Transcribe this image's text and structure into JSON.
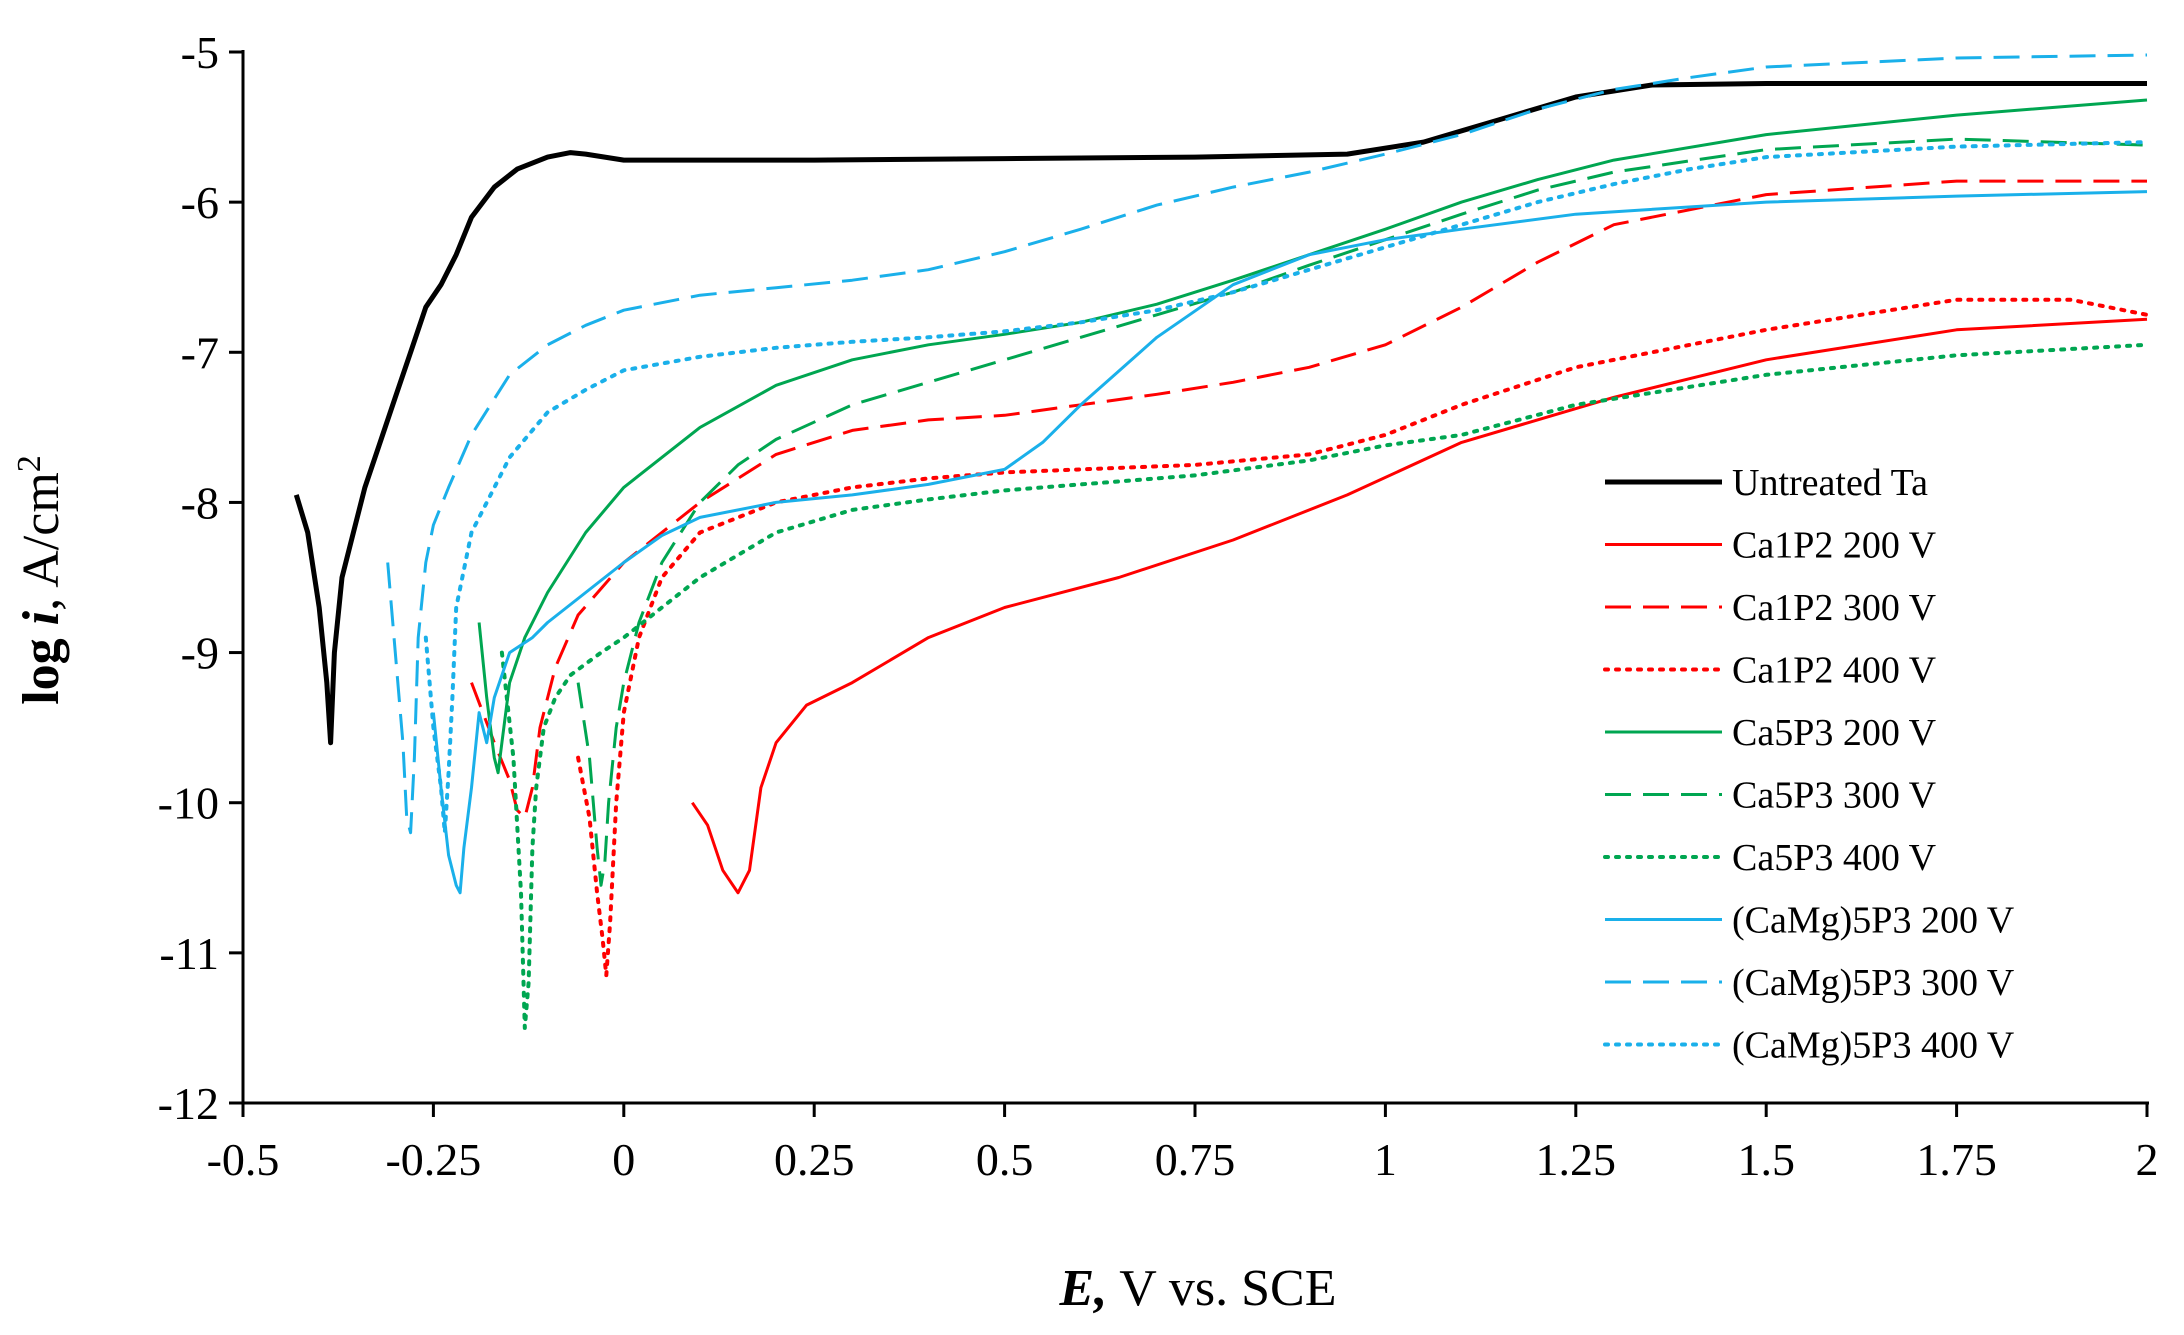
{
  "chart_data": {
    "type": "line",
    "title": "",
    "xlabel": {
      "italic": "E,",
      "rest": " V vs. SCE"
    },
    "ylabel": {
      "bold": "log ",
      "bold_italic": "i",
      "rest": ", A/cm",
      "sup": "2"
    },
    "xlim": [
      -0.5,
      2.0
    ],
    "ylim": [
      -12,
      -5
    ],
    "xticks": [
      -0.5,
      -0.25,
      0,
      0.25,
      0.5,
      0.75,
      1,
      1.25,
      1.5,
      1.75,
      2
    ],
    "xtick_labels": [
      "-0.5",
      "-0.25",
      "0",
      "0.25",
      "0.5",
      "0.75",
      "1",
      "1.25",
      "1.5",
      "1.75",
      "2"
    ],
    "yticks": [
      -5,
      -6,
      -7,
      -8,
      -9,
      -10,
      -11,
      -12
    ],
    "ytick_labels": [
      "-5",
      "-6",
      "-7",
      "-8",
      "-9",
      "-10",
      "-11",
      "-12"
    ],
    "grid": false,
    "legend_position": "right",
    "series": [
      {
        "name": "Untreated Ta",
        "color": "#000000",
        "dash": "solid",
        "width": 5,
        "x": [
          -0.43,
          -0.415,
          -0.4,
          -0.39,
          -0.385,
          -0.38,
          -0.37,
          -0.355,
          -0.34,
          -0.32,
          -0.3,
          -0.28,
          -0.26,
          -0.24,
          -0.22,
          -0.2,
          -0.17,
          -0.14,
          -0.1,
          -0.07,
          -0.05,
          0.0,
          0.25,
          0.5,
          0.75,
          0.95,
          1.05,
          1.15,
          1.25,
          1.35,
          1.5,
          1.75,
          2.0
        ],
        "y": [
          -7.95,
          -8.2,
          -8.7,
          -9.2,
          -9.6,
          -9.0,
          -8.5,
          -8.2,
          -7.9,
          -7.6,
          -7.3,
          -7.0,
          -6.7,
          -6.55,
          -6.35,
          -6.1,
          -5.9,
          -5.78,
          -5.7,
          -5.67,
          -5.68,
          -5.72,
          -5.72,
          -5.71,
          -5.7,
          -5.68,
          -5.6,
          -5.45,
          -5.3,
          -5.22,
          -5.21,
          -5.21,
          -5.21
        ]
      },
      {
        "name": "Ca1P2 200 V",
        "color": "#ff0000",
        "dash": "solid",
        "width": 3,
        "x": [
          0.09,
          0.11,
          0.13,
          0.15,
          0.165,
          0.18,
          0.2,
          0.24,
          0.3,
          0.4,
          0.5,
          0.65,
          0.8,
          0.95,
          1.1,
          1.3,
          1.5,
          1.75,
          2.0
        ],
        "y": [
          -10.0,
          -10.15,
          -10.45,
          -10.6,
          -10.45,
          -9.9,
          -9.6,
          -9.35,
          -9.2,
          -8.9,
          -8.7,
          -8.5,
          -8.25,
          -7.95,
          -7.6,
          -7.3,
          -7.05,
          -6.85,
          -6.78
        ]
      },
      {
        "name": "Ca1P2 300 V",
        "color": "#ff0000",
        "dash": "long",
        "width": 3,
        "x": [
          -0.2,
          -0.17,
          -0.15,
          -0.14,
          -0.13,
          -0.12,
          -0.11,
          -0.09,
          -0.06,
          0.0,
          0.1,
          0.2,
          0.3,
          0.4,
          0.5,
          0.6,
          0.7,
          0.8,
          0.9,
          1.0,
          1.1,
          1.2,
          1.3,
          1.5,
          1.75,
          2.0
        ],
        "y": [
          -9.2,
          -9.6,
          -9.85,
          -10.05,
          -10.1,
          -9.9,
          -9.5,
          -9.1,
          -8.75,
          -8.4,
          -8.0,
          -7.68,
          -7.52,
          -7.45,
          -7.42,
          -7.35,
          -7.28,
          -7.2,
          -7.1,
          -6.95,
          -6.7,
          -6.4,
          -6.15,
          -5.95,
          -5.86,
          -5.86
        ]
      },
      {
        "name": "Ca1P2 400 V",
        "color": "#ff0000",
        "dash": "dot",
        "width": 4,
        "x": [
          -0.06,
          -0.045,
          -0.035,
          -0.028,
          -0.023,
          -0.018,
          -0.01,
          0.0,
          0.02,
          0.05,
          0.1,
          0.2,
          0.3,
          0.4,
          0.5,
          0.75,
          0.9,
          1.0,
          1.1,
          1.25,
          1.5,
          1.75,
          1.9,
          2.0
        ],
        "y": [
          -9.7,
          -10.1,
          -10.6,
          -10.9,
          -11.15,
          -10.8,
          -10.0,
          -9.4,
          -8.9,
          -8.5,
          -8.2,
          -8.0,
          -7.9,
          -7.84,
          -7.8,
          -7.75,
          -7.68,
          -7.55,
          -7.35,
          -7.1,
          -6.85,
          -6.65,
          -6.65,
          -6.75
        ]
      },
      {
        "name": "Ca5P3 200 V",
        "color": "#00a651",
        "dash": "solid",
        "width": 3,
        "x": [
          -0.19,
          -0.18,
          -0.17,
          -0.165,
          -0.16,
          -0.15,
          -0.13,
          -0.1,
          -0.05,
          0.0,
          0.1,
          0.2,
          0.3,
          0.4,
          0.5,
          0.6,
          0.7,
          0.8,
          0.9,
          1.0,
          1.1,
          1.2,
          1.3,
          1.5,
          1.75,
          2.0
        ],
        "y": [
          -8.8,
          -9.3,
          -9.7,
          -9.8,
          -9.6,
          -9.2,
          -8.9,
          -8.6,
          -8.2,
          -7.9,
          -7.5,
          -7.22,
          -7.05,
          -6.95,
          -6.88,
          -6.8,
          -6.68,
          -6.52,
          -6.35,
          -6.18,
          -6.0,
          -5.85,
          -5.72,
          -5.55,
          -5.42,
          -5.32
        ]
      },
      {
        "name": "Ca5P3 300 V",
        "color": "#00a651",
        "dash": "long",
        "width": 3,
        "x": [
          -0.06,
          -0.045,
          -0.035,
          -0.03,
          -0.025,
          -0.02,
          -0.01,
          0.0,
          0.02,
          0.05,
          0.1,
          0.15,
          0.2,
          0.3,
          0.4,
          0.5,
          0.6,
          0.7,
          0.8,
          0.9,
          1.0,
          1.1,
          1.2,
          1.3,
          1.5,
          1.75,
          2.0
        ],
        "y": [
          -9.2,
          -9.7,
          -10.3,
          -10.55,
          -10.4,
          -10.0,
          -9.5,
          -9.2,
          -8.8,
          -8.4,
          -8.0,
          -7.75,
          -7.58,
          -7.35,
          -7.2,
          -7.05,
          -6.9,
          -6.75,
          -6.6,
          -6.42,
          -6.25,
          -6.08,
          -5.92,
          -5.8,
          -5.65,
          -5.58,
          -5.62
        ]
      },
      {
        "name": "Ca5P3 400 V",
        "color": "#00a651",
        "dash": "dot",
        "width": 4,
        "x": [
          -0.16,
          -0.145,
          -0.135,
          -0.13,
          -0.125,
          -0.12,
          -0.115,
          -0.105,
          -0.09,
          -0.07,
          -0.03,
          0.0,
          0.05,
          0.1,
          0.2,
          0.3,
          0.4,
          0.5,
          0.75,
          0.9,
          1.0,
          1.1,
          1.25,
          1.5,
          1.75,
          2.0
        ],
        "y": [
          -9.0,
          -9.7,
          -10.6,
          -11.5,
          -11.2,
          -10.3,
          -9.9,
          -9.5,
          -9.3,
          -9.15,
          -9.0,
          -8.9,
          -8.7,
          -8.5,
          -8.2,
          -8.05,
          -7.98,
          -7.92,
          -7.82,
          -7.72,
          -7.62,
          -7.55,
          -7.35,
          -7.15,
          -7.02,
          -6.95
        ]
      },
      {
        "name": "(CaMg)5P3 200 V",
        "color": "#1ab0ea",
        "dash": "solid",
        "width": 3,
        "x": [
          -0.25,
          -0.24,
          -0.23,
          -0.22,
          -0.215,
          -0.21,
          -0.2,
          -0.19,
          -0.18,
          -0.17,
          -0.15,
          -0.12,
          -0.1,
          -0.05,
          0.0,
          0.05,
          0.1,
          0.2,
          0.3,
          0.4,
          0.5,
          0.55,
          0.6,
          0.7,
          0.8,
          0.9,
          1.0,
          1.1,
          1.25,
          1.5,
          1.75,
          2.0
        ],
        "y": [
          -9.4,
          -9.9,
          -10.35,
          -10.55,
          -10.6,
          -10.3,
          -9.9,
          -9.4,
          -9.6,
          -9.3,
          -9.0,
          -8.9,
          -8.8,
          -8.6,
          -8.4,
          -8.22,
          -8.1,
          -8.0,
          -7.95,
          -7.88,
          -7.78,
          -7.6,
          -7.35,
          -6.9,
          -6.55,
          -6.35,
          -6.25,
          -6.18,
          -6.08,
          -6.0,
          -5.96,
          -5.93
        ]
      },
      {
        "name": "(CaMg)5P3 300 V",
        "color": "#1ab0ea",
        "dash": "long",
        "width": 3,
        "x": [
          -0.31,
          -0.3,
          -0.29,
          -0.285,
          -0.28,
          -0.275,
          -0.27,
          -0.26,
          -0.25,
          -0.23,
          -0.2,
          -0.15,
          -0.1,
          -0.05,
          0.0,
          0.1,
          0.2,
          0.3,
          0.4,
          0.5,
          0.6,
          0.7,
          0.8,
          0.9,
          1.0,
          1.1,
          1.2,
          1.3,
          1.4,
          1.5,
          1.75,
          2.0
        ],
        "y": [
          -8.4,
          -9.0,
          -9.6,
          -10.1,
          -10.2,
          -9.7,
          -8.9,
          -8.4,
          -8.15,
          -7.9,
          -7.55,
          -7.15,
          -6.95,
          -6.82,
          -6.72,
          -6.62,
          -6.57,
          -6.52,
          -6.45,
          -6.33,
          -6.18,
          -6.02,
          -5.9,
          -5.8,
          -5.68,
          -5.55,
          -5.38,
          -5.25,
          -5.17,
          -5.1,
          -5.04,
          -5.02
        ]
      },
      {
        "name": "(CaMg)5P3 400 V",
        "color": "#1ab0ea",
        "dash": "dot",
        "width": 4,
        "x": [
          -0.26,
          -0.25,
          -0.24,
          -0.235,
          -0.23,
          -0.225,
          -0.22,
          -0.2,
          -0.15,
          -0.1,
          -0.05,
          0.0,
          0.1,
          0.2,
          0.3,
          0.4,
          0.5,
          0.6,
          0.7,
          0.8,
          0.9,
          1.0,
          1.1,
          1.2,
          1.3,
          1.4,
          1.5,
          1.75,
          2.0
        ],
        "y": [
          -8.9,
          -9.5,
          -9.9,
          -10.2,
          -9.8,
          -9.3,
          -8.7,
          -8.2,
          -7.7,
          -7.4,
          -7.25,
          -7.12,
          -7.03,
          -6.97,
          -6.93,
          -6.9,
          -6.86,
          -6.8,
          -6.72,
          -6.6,
          -6.45,
          -6.3,
          -6.15,
          -6.0,
          -5.88,
          -5.78,
          -5.7,
          -5.63,
          -5.6
        ]
      }
    ]
  }
}
